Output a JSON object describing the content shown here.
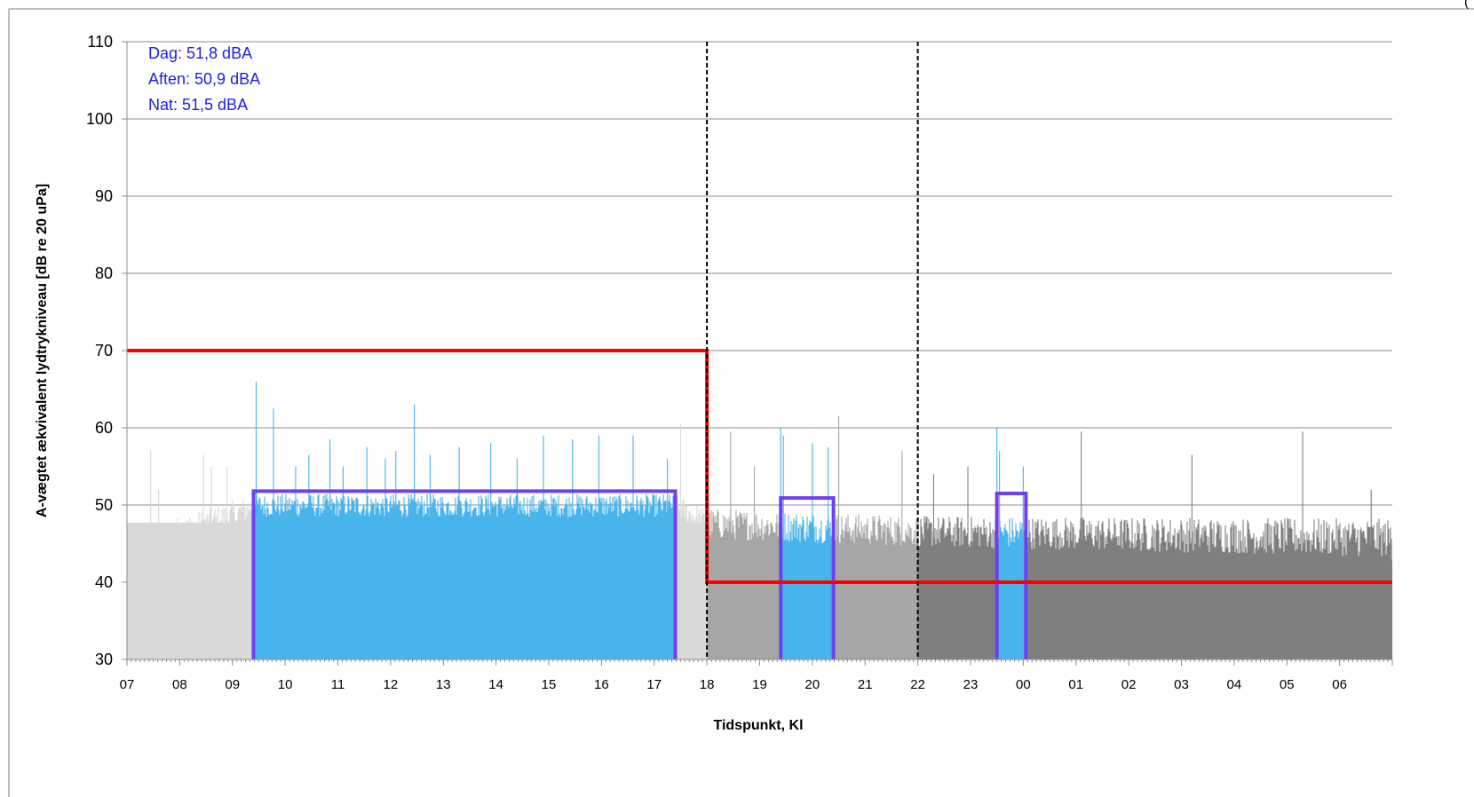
{
  "chart_data": {
    "type": "bar",
    "title": "",
    "xlabel": "Tidspunkt, Kl",
    "ylabel": "A-vægtet ækvivalent lydtrykniveau [dB re 20 uPa]",
    "ylim": [
      30,
      110
    ],
    "yticks": [
      30,
      40,
      50,
      60,
      70,
      80,
      90,
      100,
      110
    ],
    "x_tick_labels": [
      "07",
      "08",
      "09",
      "10",
      "11",
      "12",
      "13",
      "14",
      "15",
      "16",
      "17",
      "18",
      "19",
      "20",
      "21",
      "22",
      "23",
      "00",
      "01",
      "02",
      "03",
      "04",
      "05",
      "06"
    ],
    "xlim_hours": [
      7,
      31
    ],
    "grid": true,
    "legend": "none",
    "annotations": [
      {
        "label": "Dag: 51,8 dBA",
        "color": "#2020e0"
      },
      {
        "label": "Aften: 50,9 dBA",
        "color": "#2020e0"
      },
      {
        "label": "Nat: 51,5 dBA",
        "color": "#2020e0"
      }
    ],
    "periods": [
      {
        "from": 7,
        "to": 18,
        "bar_color": "#d9d9d9"
      },
      {
        "from": 18,
        "to": 22,
        "bar_color": "#a6a6a6"
      },
      {
        "from": 22,
        "to": 31,
        "bar_color": "#7f7f7f"
      }
    ],
    "measurement_windows": [
      {
        "from": 9.4,
        "to": 17.4,
        "value": 51.8,
        "bar_color": "#47b4ec",
        "outline": "#7040f0"
      },
      {
        "from": 19.4,
        "to": 20.4,
        "value": 50.9,
        "bar_color": "#47b4ec",
        "outline": "#7040f0"
      },
      {
        "from": 23.5,
        "to": 24.05,
        "value": 51.5,
        "bar_color": "#47b4ec",
        "outline": "#7040f0"
      }
    ],
    "limit_line": {
      "color": "#ff0000",
      "segments": [
        {
          "from": 7,
          "to": 18,
          "value": 70
        },
        {
          "from": 18,
          "to": 31,
          "value": 40
        }
      ]
    },
    "period_dividers": [
      18,
      22
    ],
    "level_profile": [
      {
        "x": 7.0,
        "base": 41,
        "spread": 2
      },
      {
        "x": 7.3,
        "base": 44,
        "spread": 4
      },
      {
        "x": 8.0,
        "base": 46,
        "spread": 4
      },
      {
        "x": 9.0,
        "base": 48,
        "spread": 4
      },
      {
        "x": 9.4,
        "base": 49.5,
        "spread": 3
      },
      {
        "x": 17.4,
        "base": 49.5,
        "spread": 3
      },
      {
        "x": 18.0,
        "base": 47,
        "spread": 4
      },
      {
        "x": 22.0,
        "base": 46,
        "spread": 4
      },
      {
        "x": 31.0,
        "base": 45,
        "spread": 5
      }
    ],
    "spikes": [
      {
        "x": 7.45,
        "value": 57
      },
      {
        "x": 7.6,
        "value": 52
      },
      {
        "x": 8.45,
        "value": 56.5
      },
      {
        "x": 8.6,
        "value": 55
      },
      {
        "x": 8.9,
        "value": 55
      },
      {
        "x": 9.45,
        "value": 66
      },
      {
        "x": 9.78,
        "value": 62.5
      },
      {
        "x": 10.2,
        "value": 55
      },
      {
        "x": 10.45,
        "value": 56.5
      },
      {
        "x": 10.85,
        "value": 58.5
      },
      {
        "x": 11.1,
        "value": 55
      },
      {
        "x": 11.55,
        "value": 57.5
      },
      {
        "x": 11.9,
        "value": 56
      },
      {
        "x": 12.1,
        "value": 57
      },
      {
        "x": 12.45,
        "value": 63
      },
      {
        "x": 12.75,
        "value": 56.5
      },
      {
        "x": 13.3,
        "value": 57.5
      },
      {
        "x": 13.9,
        "value": 58
      },
      {
        "x": 14.4,
        "value": 56
      },
      {
        "x": 14.9,
        "value": 59
      },
      {
        "x": 15.45,
        "value": 58.5
      },
      {
        "x": 15.95,
        "value": 59
      },
      {
        "x": 16.6,
        "value": 59
      },
      {
        "x": 17.25,
        "value": 56
      },
      {
        "x": 17.5,
        "value": 60.5
      },
      {
        "x": 18.45,
        "value": 59.5
      },
      {
        "x": 18.9,
        "value": 55
      },
      {
        "x": 19.4,
        "value": 60
      },
      {
        "x": 19.45,
        "value": 59
      },
      {
        "x": 20.0,
        "value": 58
      },
      {
        "x": 20.3,
        "value": 57.5
      },
      {
        "x": 20.5,
        "value": 61.5
      },
      {
        "x": 21.7,
        "value": 57
      },
      {
        "x": 22.3,
        "value": 54
      },
      {
        "x": 22.95,
        "value": 55
      },
      {
        "x": 23.5,
        "value": 60
      },
      {
        "x": 23.55,
        "value": 57
      },
      {
        "x": 24.0,
        "value": 55
      },
      {
        "x": 25.1,
        "value": 59.5
      },
      {
        "x": 27.2,
        "value": 56.5
      },
      {
        "x": 29.3,
        "value": 59.5
      },
      {
        "x": 30.6,
        "value": 52
      }
    ],
    "corner_note": "("
  }
}
